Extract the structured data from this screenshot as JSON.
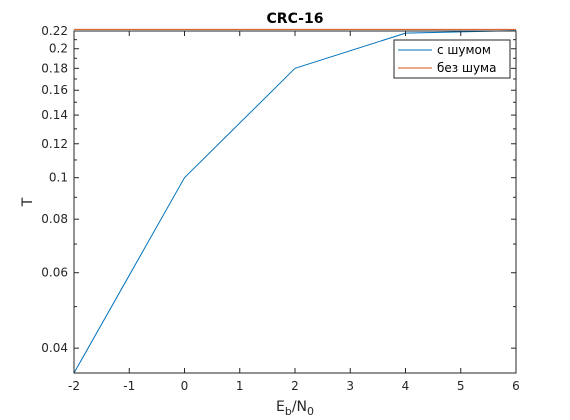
{
  "chart_data": {
    "type": "line",
    "title": "CRC-16",
    "xlabel": {
      "base": "E",
      "sub1": "b",
      "mid": "/N",
      "sub2": "0"
    },
    "ylabel": "T",
    "xlim": [
      -2,
      6
    ],
    "ylim": [
      0.035,
      0.22
    ],
    "yscale": "log",
    "x_ticks": [
      -2,
      -1,
      0,
      1,
      2,
      3,
      4,
      5,
      6
    ],
    "x_tick_labels": [
      "-2",
      "-1",
      "0",
      "1",
      "2",
      "3",
      "4",
      "5",
      "6"
    ],
    "y_ticks": [
      0.04,
      0.06,
      0.08,
      0.1,
      0.12,
      0.14,
      0.16,
      0.18,
      0.2,
      0.22
    ],
    "y_tick_labels": [
      "0.04",
      "0.06",
      "0.08",
      "0.1",
      "0.12",
      "0.14",
      "0.16",
      "0.18",
      "0.2",
      "0.22"
    ],
    "grid": false,
    "legend_position": "top-right",
    "series": [
      {
        "name": "с шумом",
        "color": "#0072BD",
        "x": [
          -2,
          0,
          2,
          4,
          6
        ],
        "y": [
          0.035,
          0.1,
          0.18,
          0.2175,
          0.2205
        ]
      },
      {
        "name": "без шума",
        "color": "#D95319",
        "x": [
          -2,
          6
        ],
        "y": [
          0.222,
          0.222
        ]
      }
    ]
  }
}
